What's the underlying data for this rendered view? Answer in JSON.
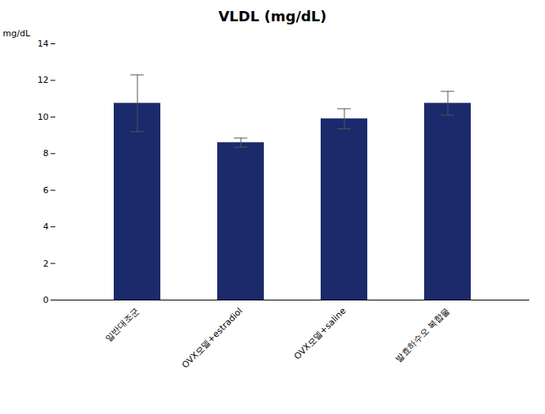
{
  "chart_data": {
    "type": "bar",
    "title": "VLDL (mg/dL)",
    "ylabel": "mg/dL",
    "categories": [
      "일반대조군",
      "OVX모델+estradiol",
      "OVX모델+saline",
      "발효하수오 복합물"
    ],
    "values": [
      10.75,
      8.6,
      9.9,
      10.75
    ],
    "errors": [
      1.55,
      0.25,
      0.55,
      0.65
    ],
    "color": "#1b2a6b",
    "ylim": [
      0,
      14
    ],
    "yticks": [
      0,
      2,
      4,
      6,
      8,
      10,
      12,
      14
    ],
    "grid": false
  }
}
